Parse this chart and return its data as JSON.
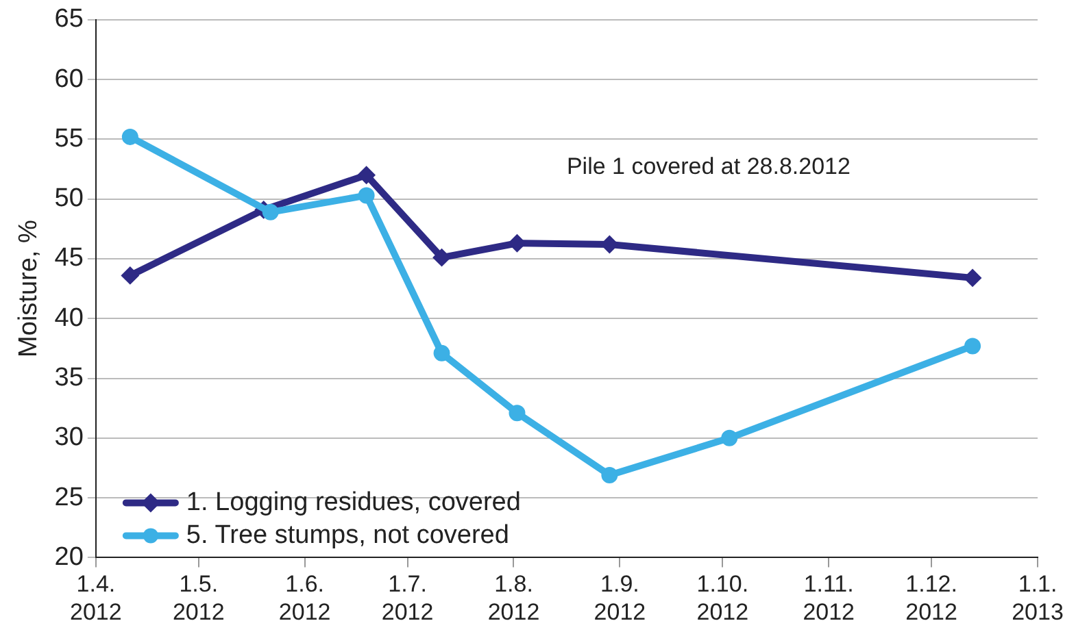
{
  "chart_data": {
    "type": "line",
    "ylabel": "Moisture, %",
    "annotations": [
      "Pile 1 covered at 28.8.2012"
    ],
    "series": [
      {
        "name": "1. Logging residues, covered",
        "color": "#2e2a85",
        "marker": "diamond",
        "x": [
          "2012-04-11",
          "2012-05-20",
          "2012-06-19",
          "2012-07-11",
          "2012-08-02",
          "2012-08-29",
          "2012-12-13"
        ],
        "values": [
          43.6,
          49.1,
          52.0,
          45.1,
          46.3,
          46.2,
          43.4
        ]
      },
      {
        "name": "5. Tree stumps, not covered",
        "color": "#3cb0e5",
        "marker": "circle",
        "x": [
          "2012-04-11",
          "2012-05-22",
          "2012-06-19",
          "2012-07-11",
          "2012-08-02",
          "2012-08-29",
          "2012-10-03",
          "2012-12-13"
        ],
        "values": [
          55.2,
          48.9,
          50.3,
          37.1,
          32.1,
          26.9,
          30.0,
          37.7
        ]
      }
    ],
    "xlim": [
      "2012-04-01",
      "2013-01-01"
    ],
    "xticks": [
      {
        "value": "2012-04-01",
        "label": "1.4.\n2012"
      },
      {
        "value": "2012-05-01",
        "label": "1.5.\n2012"
      },
      {
        "value": "2012-06-01",
        "label": "1.6.\n2012"
      },
      {
        "value": "2012-07-01",
        "label": "1.7.\n2012"
      },
      {
        "value": "2012-08-01",
        "label": "1.8.\n2012"
      },
      {
        "value": "2012-09-01",
        "label": "1.9.\n2012"
      },
      {
        "value": "2012-10-01",
        "label": "1.10.\n2012"
      },
      {
        "value": "2012-11-01",
        "label": "1.11.\n2012"
      },
      {
        "value": "2012-12-01",
        "label": "1.12.\n2012"
      },
      {
        "value": "2013-01-01",
        "label": "1.1.\n2013"
      }
    ],
    "ylim": [
      20,
      65
    ],
    "yticks": [
      20,
      25,
      30,
      35,
      40,
      45,
      50,
      55,
      60,
      65
    ],
    "grid": "y",
    "legend": "bottom left",
    "line_style": "solid"
  }
}
